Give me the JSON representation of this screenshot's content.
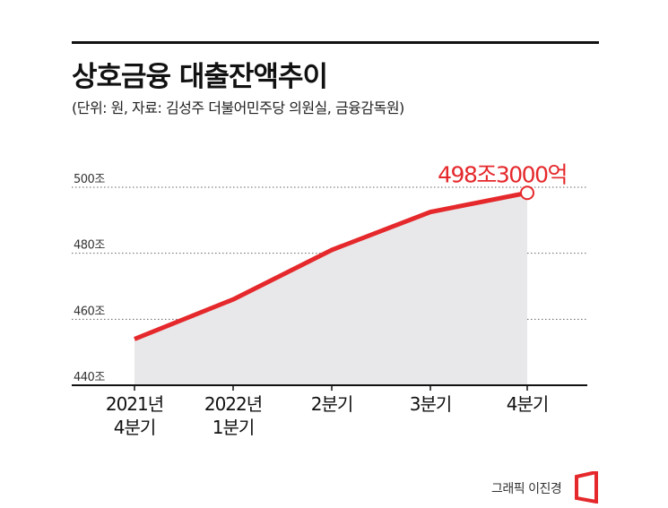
{
  "header": {
    "title": "상호금융 대출잔액추이",
    "subtitle": "(단위: 원, 자료: 김성주 더불어민주당 의원실, 금융감독원)"
  },
  "footer": {
    "credit": "그래픽 이진경"
  },
  "colors": {
    "line": "#e5282b",
    "area": "#e8e8ea",
    "highlight_label": "#e5282b"
  },
  "chart_data": {
    "type": "area",
    "title": "상호금융 대출잔액추이",
    "subtitle": "(단위: 원, 자료: 김성주 더불어민주당 의원실, 금융감독원)",
    "categories": [
      "2021년\n4분기",
      "2022년\n1분기",
      "2분기",
      "3분기",
      "4분기"
    ],
    "values": [
      454,
      466,
      481,
      492.5,
      498.3
    ],
    "y_ticks": [
      440,
      460,
      480,
      500
    ],
    "y_tick_labels": [
      "440조",
      "460조",
      "480조",
      "500조"
    ],
    "ylim": [
      440,
      500
    ],
    "grid": true,
    "highlight": {
      "index": 4,
      "label": "498조3000억"
    }
  }
}
